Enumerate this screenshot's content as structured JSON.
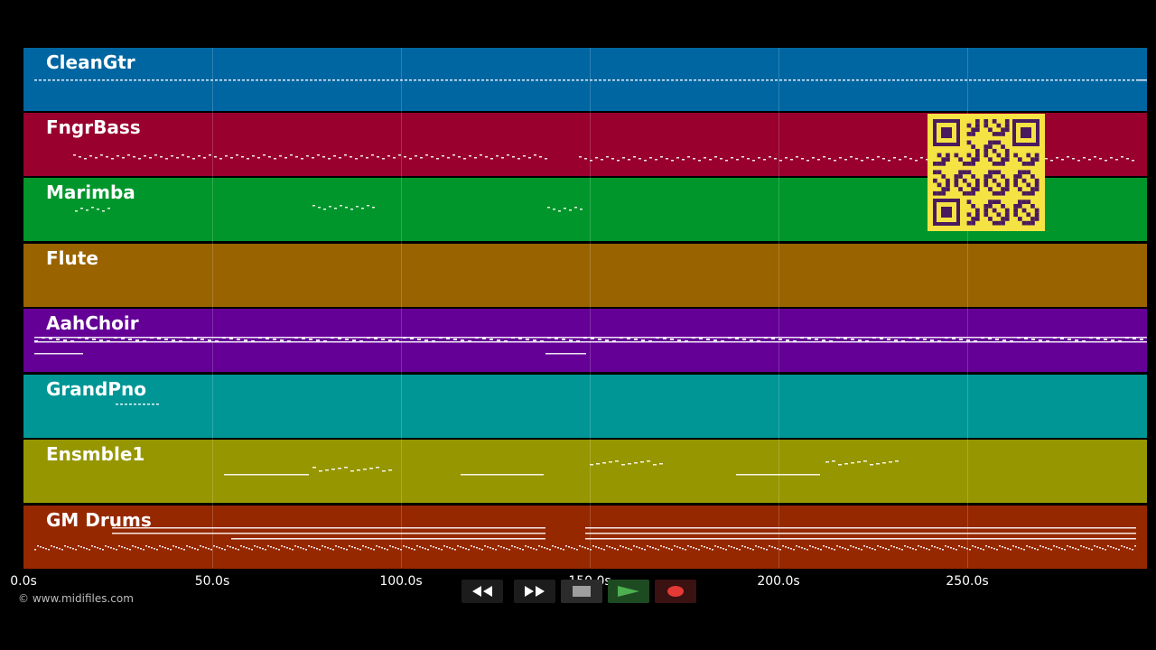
{
  "tracks": [
    {
      "name": "CleanGtr",
      "color": "#0066a1"
    },
    {
      "name": "FngrBass",
      "color": "#99002e"
    },
    {
      "name": "Marimba",
      "color": "#00962b"
    },
    {
      "name": "Flute",
      "color": "#996300"
    },
    {
      "name": "AahChoir",
      "color": "#640096"
    },
    {
      "name": "GrandPno",
      "color": "#009696"
    },
    {
      "name": "Ensmble1",
      "color": "#969600"
    },
    {
      "name": "GM Drums",
      "color": "#962800"
    }
  ],
  "timeline": {
    "ticks": [
      "0.0s",
      "50.0s",
      "100.0s",
      "150.0s",
      "200.0s",
      "250.0s"
    ]
  },
  "copyright": "© www.midifiles.com",
  "controls": {
    "rewind_icon": "rewind-icon",
    "forward_icon": "fast-forward-icon",
    "stop_icon": "stop-icon",
    "play_icon": "play-icon",
    "record_icon": "record-icon"
  },
  "colors": {
    "qr_bg": "#f5e243",
    "qr_fg": "#4a1a5e",
    "play": "#2e7d32",
    "record": "#e53935"
  }
}
